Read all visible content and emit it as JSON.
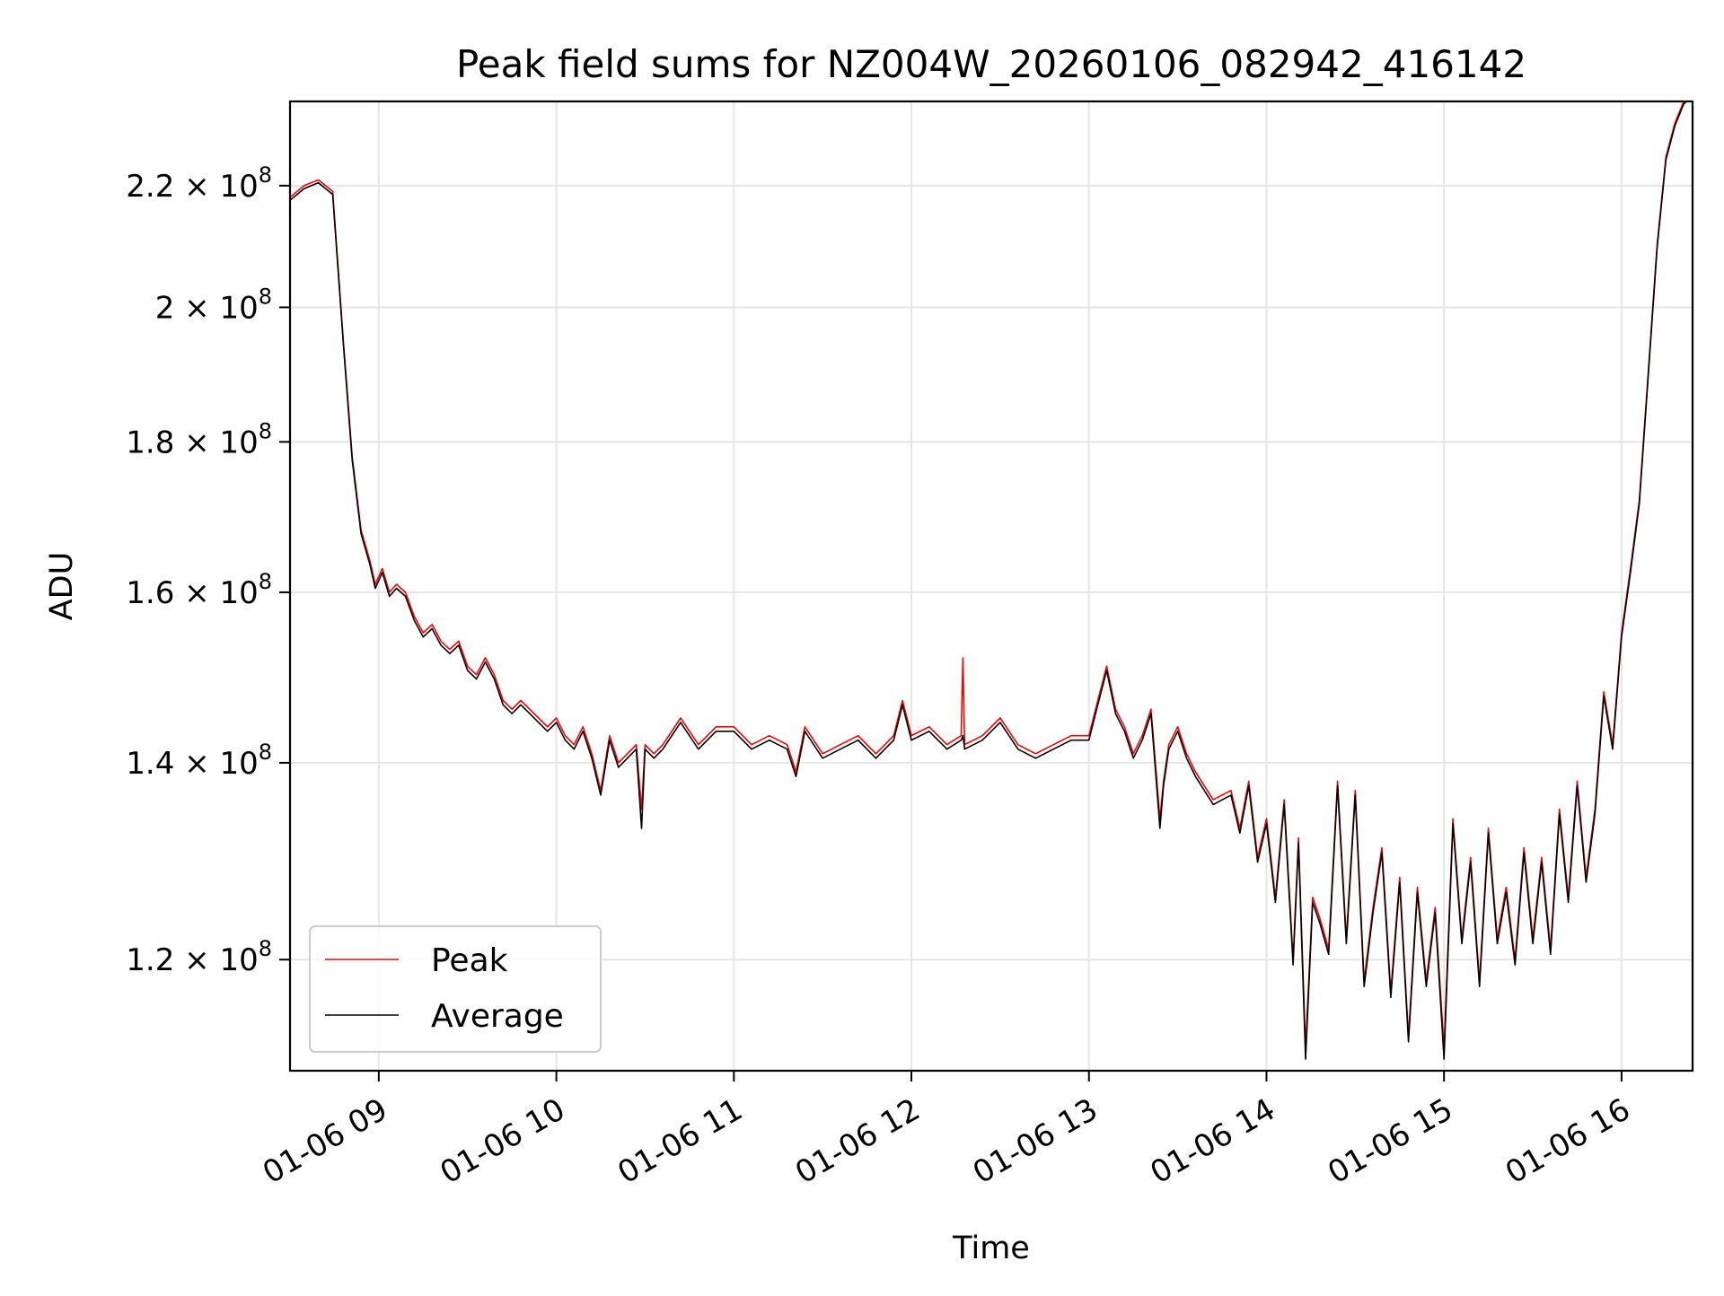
{
  "chart_data": {
    "type": "line",
    "title": "Peak field sums for NZ004W_20260106_082942_416142",
    "xlabel": "Time",
    "ylabel": "ADU",
    "x_unit": "hours (decimal, 2026-01-06)",
    "xlim": [
      8.5,
      16.4
    ],
    "ylim": [
      110000000.0,
      235000000.0
    ],
    "y_scale": "log",
    "grid": true,
    "legend_position": "lower-left",
    "x_ticks": [
      {
        "value": 9,
        "label": "01-06 09"
      },
      {
        "value": 10,
        "label": "01-06 10"
      },
      {
        "value": 11,
        "label": "01-06 11"
      },
      {
        "value": 12,
        "label": "01-06 12"
      },
      {
        "value": 13,
        "label": "01-06 13"
      },
      {
        "value": 14,
        "label": "01-06 14"
      },
      {
        "value": 15,
        "label": "01-06 15"
      },
      {
        "value": 16,
        "label": "01-06 16"
      }
    ],
    "y_ticks": [
      {
        "value": 120000000.0,
        "mantissa": "1.2",
        "base": "10",
        "exp": "8"
      },
      {
        "value": 140000000.0,
        "mantissa": "1.4",
        "base": "10",
        "exp": "8"
      },
      {
        "value": 160000000.0,
        "mantissa": "1.6",
        "base": "10",
        "exp": "8"
      },
      {
        "value": 180000000.0,
        "mantissa": "1.8",
        "base": "10",
        "exp": "8"
      },
      {
        "value": 200000000.0,
        "mantissa": "2",
        "base": "10",
        "exp": "8"
      },
      {
        "value": 220000000.0,
        "mantissa": "2.2",
        "base": "10",
        "exp": "8"
      }
    ],
    "series": [
      {
        "name": "Peak",
        "color": "#ff0000",
        "x": [
          8.5,
          8.58,
          8.66,
          8.74,
          8.8,
          8.85,
          8.9,
          8.95,
          8.98,
          9.02,
          9.06,
          9.1,
          9.15,
          9.2,
          9.25,
          9.3,
          9.35,
          9.4,
          9.45,
          9.5,
          9.55,
          9.6,
          9.65,
          9.7,
          9.75,
          9.8,
          9.85,
          9.9,
          9.95,
          10.0,
          10.05,
          10.1,
          10.15,
          10.2,
          10.25,
          10.3,
          10.35,
          10.4,
          10.45,
          10.48,
          10.5,
          10.55,
          10.6,
          10.7,
          10.8,
          10.9,
          11.0,
          11.1,
          11.2,
          11.3,
          11.35,
          11.4,
          11.5,
          11.6,
          11.7,
          11.8,
          11.9,
          11.95,
          12.0,
          12.1,
          12.2,
          12.28,
          12.29,
          12.3,
          12.4,
          12.5,
          12.6,
          12.7,
          12.8,
          12.9,
          13.0,
          13.05,
          13.1,
          13.15,
          13.2,
          13.25,
          13.3,
          13.35,
          13.4,
          13.42,
          13.45,
          13.5,
          13.55,
          13.6,
          13.7,
          13.8,
          13.85,
          13.9,
          13.95,
          14.0,
          14.05,
          14.1,
          14.15,
          14.18,
          14.22,
          14.26,
          14.3,
          14.35,
          14.4,
          14.45,
          14.5,
          14.55,
          14.6,
          14.65,
          14.7,
          14.75,
          14.8,
          14.85,
          14.9,
          14.95,
          15.0,
          15.05,
          15.1,
          15.15,
          15.2,
          15.25,
          15.3,
          15.35,
          15.4,
          15.45,
          15.5,
          15.55,
          15.6,
          15.65,
          15.7,
          15.75,
          15.8,
          15.85,
          15.9,
          15.95,
          16.0,
          16.05,
          16.1,
          16.15,
          16.2,
          16.25,
          16.3,
          16.35,
          16.4
        ],
        "values": [
          218000000.0,
          220000000.0,
          221000000.0,
          219000000.0,
          195000000.0,
          178000000.0,
          168000000.0,
          164000000.0,
          161000000.0,
          163000000.0,
          160000000.0,
          161000000.0,
          160000000.0,
          157000000.0,
          155000000.0,
          156000000.0,
          154000000.0,
          153000000.0,
          154000000.0,
          151000000.0,
          150000000.0,
          152000000.0,
          150000000.0,
          147000000.0,
          146000000.0,
          147000000.0,
          146000000.0,
          145000000.0,
          144000000.0,
          145000000.0,
          143000000.0,
          142000000.0,
          144000000.0,
          141000000.0,
          137000000.0,
          143000000.0,
          140000000.0,
          141000000.0,
          142000000.0,
          135000000.0,
          142000000.0,
          141000000.0,
          142000000.0,
          145000000.0,
          142000000.0,
          144000000.0,
          144000000.0,
          142000000.0,
          143000000.0,
          142000000.0,
          139000000.0,
          144000000.0,
          141000000.0,
          142000000.0,
          143000000.0,
          141000000.0,
          143000000.0,
          147000000.0,
          143000000.0,
          144000000.0,
          142000000.0,
          143000000.0,
          152000000.0,
          142000000.0,
          143000000.0,
          145000000.0,
          142000000.0,
          141000000.0,
          142000000.0,
          143000000.0,
          143000000.0,
          147000000.0,
          151000000.0,
          146000000.0,
          144000000.0,
          141000000.0,
          143000000.0,
          146000000.0,
          134000000.0,
          138000000.0,
          142000000.0,
          144000000.0,
          141000000.0,
          139000000.0,
          136000000.0,
          137000000.0,
          133000000.0,
          138000000.0,
          130000000.0,
          134000000.0,
          126000000.0,
          136000000.0,
          120000000.0,
          132000000.0,
          112000000.0,
          126000000.0,
          124000000.0,
          121000000.0,
          138000000.0,
          122000000.0,
          137000000.0,
          118000000.0,
          125000000.0,
          131000000.0,
          117000000.0,
          128000000.0,
          113000000.0,
          127000000.0,
          118000000.0,
          125000000.0,
          112000000.0,
          134000000.0,
          122000000.0,
          130000000.0,
          118000000.0,
          133000000.0,
          122000000.0,
          127000000.0,
          120000000.0,
          131000000.0,
          122000000.0,
          130000000.0,
          121000000.0,
          135000000.0,
          126000000.0,
          138000000.0,
          128000000.0,
          135000000.0,
          148000000.0,
          142000000.0,
          155000000.0,
          163000000.0,
          172000000.0,
          190000000.0,
          210000000.0,
          225000000.0,
          231000000.0,
          235000000.0,
          236000000.0
        ]
      },
      {
        "name": "Average",
        "color": "#000000",
        "x": [
          8.5,
          8.58,
          8.66,
          8.74,
          8.8,
          8.85,
          8.9,
          8.95,
          8.98,
          9.02,
          9.06,
          9.1,
          9.15,
          9.2,
          9.25,
          9.3,
          9.35,
          9.4,
          9.45,
          9.5,
          9.55,
          9.6,
          9.65,
          9.7,
          9.75,
          9.8,
          9.85,
          9.9,
          9.95,
          10.0,
          10.05,
          10.1,
          10.15,
          10.2,
          10.25,
          10.3,
          10.35,
          10.4,
          10.45,
          10.48,
          10.5,
          10.55,
          10.6,
          10.7,
          10.8,
          10.9,
          11.0,
          11.1,
          11.2,
          11.3,
          11.35,
          11.4,
          11.5,
          11.6,
          11.7,
          11.8,
          11.9,
          11.95,
          12.0,
          12.1,
          12.2,
          12.28,
          12.29,
          12.3,
          12.4,
          12.5,
          12.6,
          12.7,
          12.8,
          12.9,
          13.0,
          13.05,
          13.1,
          13.15,
          13.2,
          13.25,
          13.3,
          13.35,
          13.4,
          13.42,
          13.45,
          13.5,
          13.55,
          13.6,
          13.7,
          13.8,
          13.85,
          13.9,
          13.95,
          14.0,
          14.05,
          14.1,
          14.15,
          14.18,
          14.22,
          14.26,
          14.3,
          14.35,
          14.4,
          14.45,
          14.5,
          14.55,
          14.6,
          14.65,
          14.7,
          14.75,
          14.8,
          14.85,
          14.9,
          14.95,
          15.0,
          15.05,
          15.1,
          15.15,
          15.2,
          15.25,
          15.3,
          15.35,
          15.4,
          15.45,
          15.5,
          15.55,
          15.6,
          15.65,
          15.7,
          15.75,
          15.8,
          15.85,
          15.9,
          15.95,
          16.0,
          16.05,
          16.1,
          16.15,
          16.2,
          16.25,
          16.3,
          16.35,
          16.4
        ],
        "values": [
          217500000.0,
          219500000.0,
          220500000.0,
          218500000.0,
          194500000.0,
          177500000.0,
          167500000.0,
          163500000.0,
          160500000.0,
          162500000.0,
          159500000.0,
          160500000.0,
          159500000.0,
          156500000.0,
          154500000.0,
          155500000.0,
          153500000.0,
          152500000.0,
          153500000.0,
          150500000.0,
          149500000.0,
          151500000.0,
          149500000.0,
          146500000.0,
          145500000.0,
          146500000.0,
          145500000.0,
          144500000.0,
          143500000.0,
          144500000.0,
          142500000.0,
          141500000.0,
          143500000.0,
          140500000.0,
          136500000.0,
          142500000.0,
          139500000.0,
          140500000.0,
          141500000.0,
          133000000.0,
          141500000.0,
          140500000.0,
          141500000.0,
          144500000.0,
          141500000.0,
          143500000.0,
          143500000.0,
          141500000.0,
          142500000.0,
          141500000.0,
          138500000.0,
          143500000.0,
          140500000.0,
          141500000.0,
          142500000.0,
          140500000.0,
          142500000.0,
          146500000.0,
          142500000.0,
          143500000.0,
          141500000.0,
          142500000.0,
          143000000.0,
          141500000.0,
          142500000.0,
          144500000.0,
          141500000.0,
          140500000.0,
          141500000.0,
          142500000.0,
          142500000.0,
          146500000.0,
          150500000.0,
          145500000.0,
          143500000.0,
          140500000.0,
          142500000.0,
          145500000.0,
          133000000.0,
          137500000.0,
          141500000.0,
          143500000.0,
          140500000.0,
          138500000.0,
          135500000.0,
          136500000.0,
          132500000.0,
          137500000.0,
          129500000.0,
          133500000.0,
          125500000.0,
          135500000.0,
          119500000.0,
          131500000.0,
          111000000.0,
          125500000.0,
          123500000.0,
          120500000.0,
          137500000.0,
          121500000.0,
          136500000.0,
          117500000.0,
          124500000.0,
          130500000.0,
          116500000.0,
          127500000.0,
          112500000.0,
          126500000.0,
          117500000.0,
          124500000.0,
          111000000.0,
          133500000.0,
          121500000.0,
          129500000.0,
          117500000.0,
          132500000.0,
          121500000.0,
          126500000.0,
          119500000.0,
          130500000.0,
          121500000.0,
          129500000.0,
          120500000.0,
          134500000.0,
          125500000.0,
          137500000.0,
          127500000.0,
          134500000.0,
          147500000.0,
          141500000.0,
          154500000.0,
          162500000.0,
          171500000.0,
          189500000.0,
          209500000.0,
          224500000.0,
          230500000.0,
          234500000.0,
          236000000.0
        ]
      }
    ]
  }
}
